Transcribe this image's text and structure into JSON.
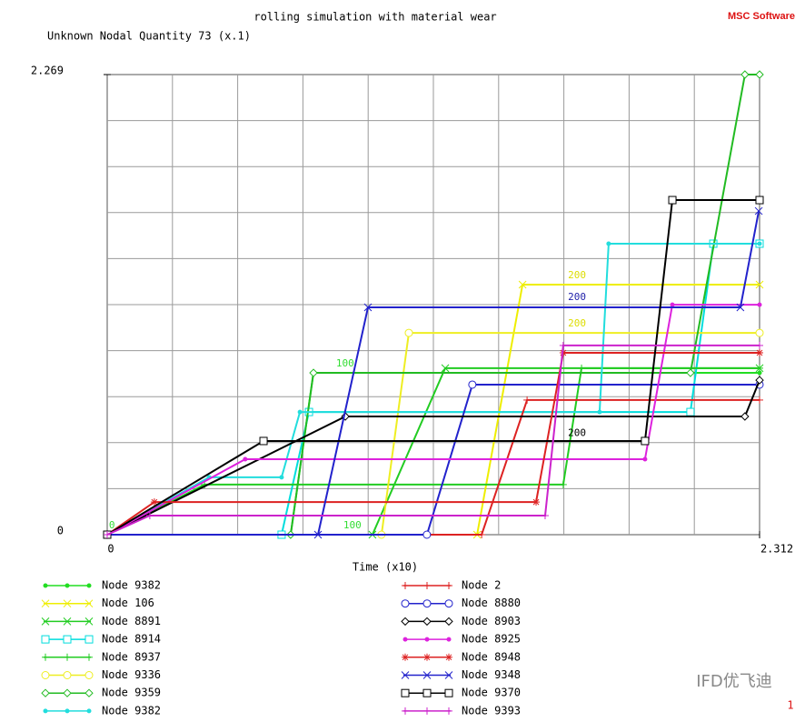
{
  "chart_data": {
    "type": "line",
    "title": "rolling simulation with material wear",
    "ylabel": "Unknown Nodal Quantity 73 (x.1)",
    "xlabel": "Time (x10)",
    "logo": "MSC Software",
    "watermark": "IFD优飞迪",
    "page_number": "1",
    "xlim": [
      0,
      2.312
    ],
    "ylim": [
      0,
      2.269
    ],
    "xticks": [
      0,
      2.312
    ],
    "yticks": [
      0,
      2.269
    ],
    "grid": true,
    "grid_divisions": 10,
    "annotations": [
      {
        "text": "100",
        "x": 0.811,
        "y": 0.843,
        "color": "#33dd33"
      },
      {
        "text": "200",
        "x": 1.633,
        "y": 1.278,
        "color": "#dddd00"
      },
      {
        "text": "200",
        "x": 1.633,
        "y": 1.17,
        "color": "#2222aa"
      },
      {
        "text": "200",
        "x": 1.633,
        "y": 1.04,
        "color": "#dddd00"
      },
      {
        "text": "200",
        "x": 1.633,
        "y": 0.5,
        "color": "#000000"
      },
      {
        "text": "100",
        "x": 0.837,
        "y": 0.045,
        "color": "#33dd33"
      },
      {
        "text": "0",
        "x": 0.006,
        "y": 0.045,
        "color": "#33dd33"
      }
    ],
    "series": [
      {
        "name": "Node 9382",
        "color": "#22dd22",
        "marker": "dot",
        "x": [
          0,
          0.65,
          0.731,
          2.312
        ],
        "values": [
          0,
          0,
          0.798,
          0.798
        ]
      },
      {
        "name": "Node 106",
        "color": "#eeee00",
        "marker": "x",
        "x": [
          0,
          1.311,
          1.472,
          2.312
        ],
        "values": [
          0,
          0,
          1.233,
          1.233
        ]
      },
      {
        "name": "Node 8891",
        "color": "#22cc22",
        "marker": "x",
        "x": [
          0,
          0.94,
          1.198,
          2.312
        ],
        "values": [
          0,
          0,
          0.821,
          0.821
        ]
      },
      {
        "name": "Node 8914",
        "color": "#00dddd",
        "marker": "square",
        "x": [
          0,
          0.618,
          0.715,
          2.067,
          2.148,
          2.312
        ],
        "values": [
          0,
          0,
          0.605,
          0.605,
          1.435,
          1.435
        ]
      },
      {
        "name": "Node 8937",
        "color": "#22cc22",
        "marker": "plus",
        "x": [
          0,
          0.345,
          1.616,
          1.681,
          2.312
        ],
        "values": [
          0,
          0.247,
          0.247,
          0.821,
          0.821
        ]
      },
      {
        "name": "Node 9336",
        "color": "#eeee22",
        "marker": "circle",
        "x": [
          0,
          0.972,
          1.069,
          2.312
        ],
        "values": [
          0,
          0,
          0.995,
          0.995
        ]
      },
      {
        "name": "Node 9359",
        "color": "#22bb22",
        "marker": "diamond",
        "x": [
          0,
          0.65,
          0.731,
          2.067,
          2.26,
          2.312
        ],
        "values": [
          0,
          0,
          0.798,
          0.798,
          2.269,
          2.269
        ]
      },
      {
        "name": "Node 9382",
        "color": "#22dddd",
        "marker": "dot",
        "x": [
          0,
          0.361,
          0.618,
          0.683,
          1.745,
          1.777,
          2.312
        ],
        "values": [
          0,
          0.283,
          0.283,
          0.605,
          0.605,
          1.435,
          1.435
        ]
      },
      {
        "name": "Node 2",
        "color": "#dd2222",
        "marker": "plus",
        "x": [
          0,
          1.327,
          1.488,
          2.312
        ],
        "values": [
          0,
          0,
          0.664,
          0.664
        ]
      },
      {
        "name": "Node 8880",
        "color": "#2222cc",
        "marker": "circle",
        "x": [
          0,
          1.133,
          1.294,
          2.312
        ],
        "values": [
          0,
          0,
          0.74,
          0.74
        ]
      },
      {
        "name": "Node 8903",
        "color": "#000000",
        "marker": "diamond",
        "x": [
          0,
          0.844,
          2.26,
          2.312
        ],
        "values": [
          0,
          0.583,
          0.583,
          0.762
        ]
      },
      {
        "name": "Node 8925",
        "color": "#dd22dd",
        "marker": "dot",
        "x": [
          0,
          0.489,
          1.906,
          2.003,
          2.312
        ],
        "values": [
          0,
          0.372,
          0.372,
          1.134,
          1.134
        ]
      },
      {
        "name": "Node 8948",
        "color": "#dd2222",
        "marker": "star",
        "x": [
          0,
          0.167,
          1.52,
          1.616,
          2.312
        ],
        "values": [
          0,
          0.161,
          0.161,
          0.897,
          0.897
        ]
      },
      {
        "name": "Node 9348",
        "color": "#2222cc",
        "marker": "x",
        "x": [
          0,
          0.747,
          0.924,
          2.244,
          2.309
        ],
        "values": [
          0,
          0,
          1.121,
          1.121,
          1.596
        ]
      },
      {
        "name": "Node 9370",
        "color": "#000000",
        "marker": "square",
        "x": [
          0,
          0.554,
          1.906,
          2.003,
          2.312
        ],
        "values": [
          0,
          0.462,
          0.462,
          1.65,
          1.65
        ]
      },
      {
        "name": "Node 9393",
        "color": "#cc22cc",
        "marker": "plus",
        "x": [
          0,
          0.151,
          1.552,
          1.616,
          2.312
        ],
        "values": [
          0,
          0.094,
          0.094,
          0.933,
          0.933
        ]
      }
    ]
  }
}
